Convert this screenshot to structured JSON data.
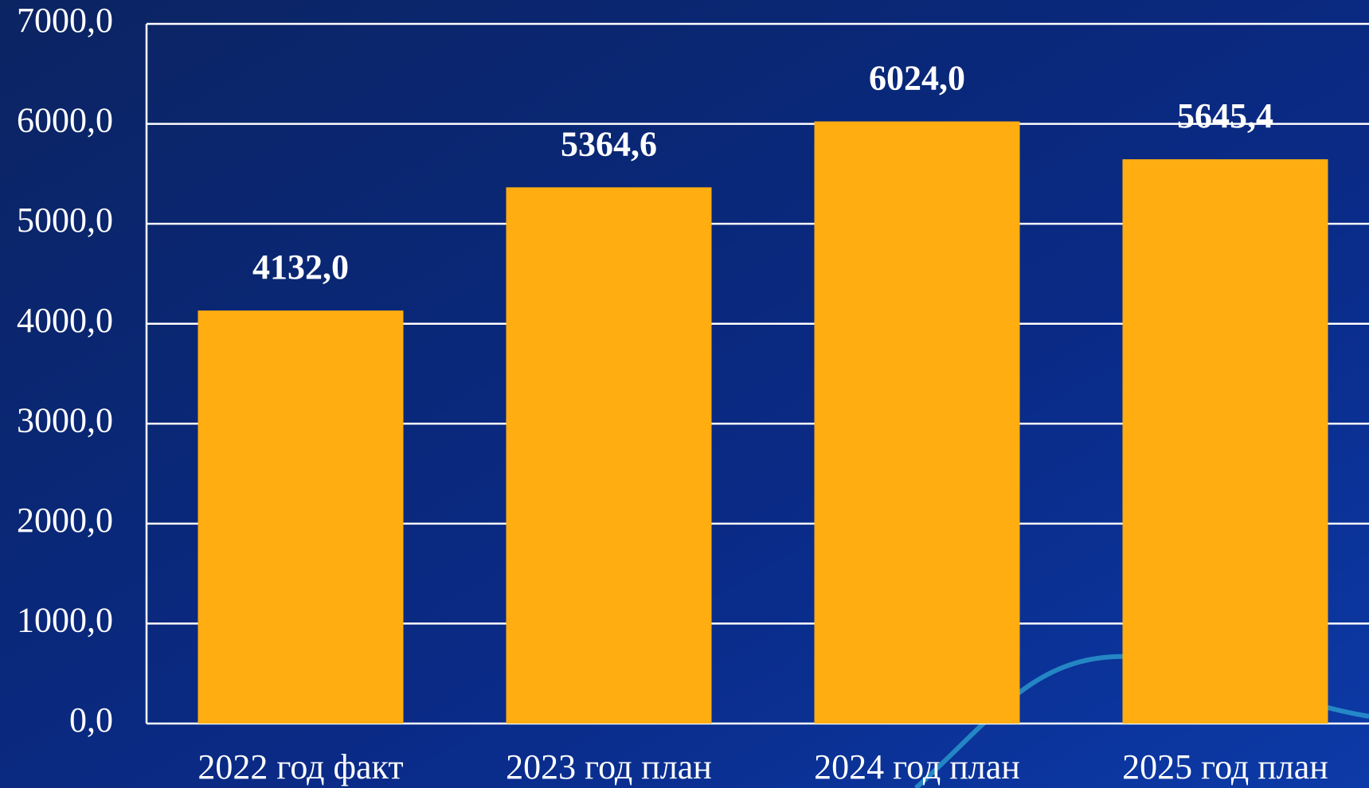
{
  "chart_data": {
    "type": "bar",
    "categories": [
      "2022 год факт",
      "2023 год план",
      "2024 год план",
      "2025 год план"
    ],
    "values": [
      4132.0,
      5364.6,
      6024.0,
      5645.4
    ],
    "value_labels": [
      "4132,0",
      "5364,6",
      "6024,0",
      "5645,4"
    ],
    "color": "#ffad10",
    "ylim": [
      0,
      7000
    ],
    "yticks": [
      {
        "value": 0,
        "label": "0,0"
      },
      {
        "value": 1000,
        "label": "1000,0"
      },
      {
        "value": 2000,
        "label": "2000,0"
      },
      {
        "value": 3000,
        "label": "3000,0"
      },
      {
        "value": 4000,
        "label": "4000,0"
      },
      {
        "value": 5000,
        "label": "5000,0"
      },
      {
        "value": 6000,
        "label": "6000,0"
      },
      {
        "value": 7000,
        "label": "7000,0"
      }
    ],
    "grid": true
  }
}
